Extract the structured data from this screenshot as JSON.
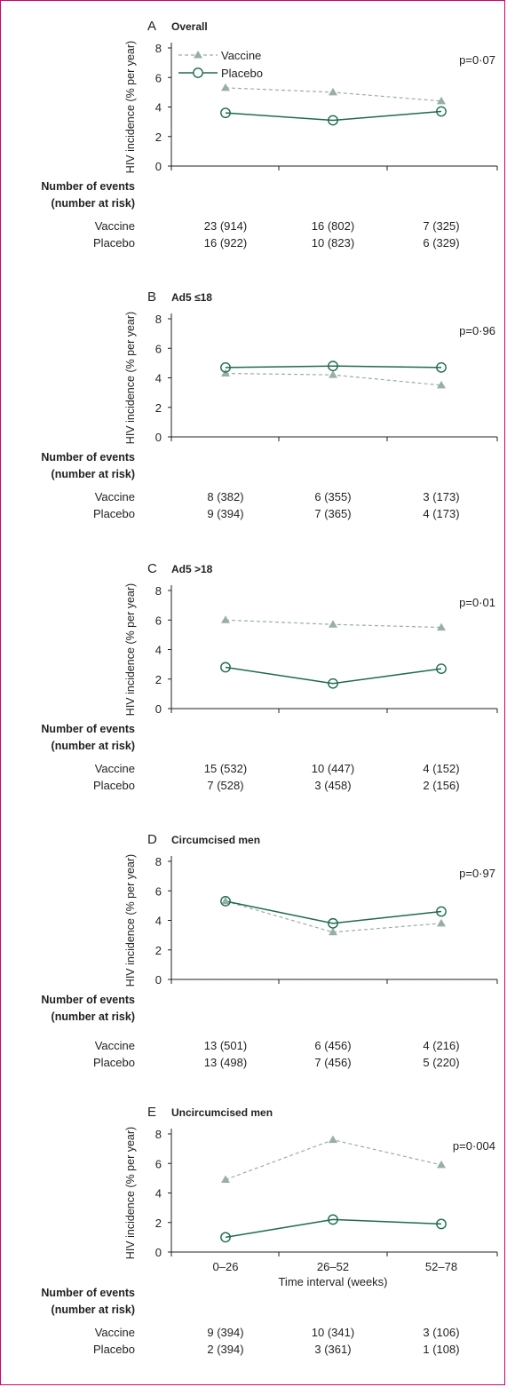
{
  "colors": {
    "vaccine": "#97b0a3",
    "placebo": "#1d6b4f",
    "frame": "#d1006e",
    "text": "#231f20"
  },
  "legend": {
    "vaccine": "Vaccine",
    "placebo": "Placebo"
  },
  "ylabel": "HIV incidence (% per year)",
  "events_header": [
    "Number of events",
    "(number at risk)"
  ],
  "xlabel": "Time interval (weeks)",
  "chart_data": [
    {
      "type": "line",
      "letter": "A",
      "title": "Overall",
      "p_value": "p=0·07",
      "categories": [
        "0–26",
        "26–52",
        "52–78"
      ],
      "ylim": [
        0,
        8
      ],
      "yticks": [
        "0",
        "2",
        "4",
        "6",
        "8"
      ],
      "series": [
        {
          "name": "Vaccine",
          "values": [
            5.3,
            5.0,
            4.4
          ]
        },
        {
          "name": "Placebo",
          "values": [
            3.6,
            3.1,
            3.7
          ]
        }
      ],
      "table": [
        {
          "label": "Vaccine",
          "cells": [
            "23 (914)",
            "16 (802)",
            "7 (325)"
          ]
        },
        {
          "label": "Placebo",
          "cells": [
            "16 (922)",
            "10 (823)",
            "6 (329)"
          ]
        }
      ]
    },
    {
      "type": "line",
      "letter": "B",
      "title": "Ad5 ≤18",
      "p_value": "p=0·96",
      "categories": [
        "0–26",
        "26–52",
        "52–78"
      ],
      "ylim": [
        0,
        8
      ],
      "yticks": [
        "0",
        "2",
        "4",
        "6",
        "8"
      ],
      "series": [
        {
          "name": "Vaccine",
          "values": [
            4.3,
            4.2,
            3.5
          ]
        },
        {
          "name": "Placebo",
          "values": [
            4.7,
            4.8,
            4.7
          ]
        }
      ],
      "table": [
        {
          "label": "Vaccine",
          "cells": [
            "8 (382)",
            "6 (355)",
            "3 (173)"
          ]
        },
        {
          "label": "Placebo",
          "cells": [
            "9 (394)",
            "7 (365)",
            "4 (173)"
          ]
        }
      ]
    },
    {
      "type": "line",
      "letter": "C",
      "title": "Ad5 >18",
      "p_value": "p=0·01",
      "categories": [
        "0–26",
        "26–52",
        "52–78"
      ],
      "ylim": [
        0,
        8
      ],
      "yticks": [
        "0",
        "2",
        "4",
        "6",
        "8"
      ],
      "series": [
        {
          "name": "Vaccine",
          "values": [
            6.0,
            5.7,
            5.5
          ]
        },
        {
          "name": "Placebo",
          "values": [
            2.8,
            1.7,
            2.7
          ]
        }
      ],
      "table": [
        {
          "label": "Vaccine",
          "cells": [
            "15 (532)",
            "10 (447)",
            "4 (152)"
          ]
        },
        {
          "label": "Placebo",
          "cells": [
            "7 (528)",
            "3 (458)",
            "2 (156)"
          ]
        }
      ]
    },
    {
      "type": "line",
      "letter": "D",
      "title": "Circumcised men",
      "p_value": "p=0·97",
      "categories": [
        "0–26",
        "26–52",
        "52–78"
      ],
      "ylim": [
        0,
        8
      ],
      "yticks": [
        "0",
        "2",
        "4",
        "6",
        "8"
      ],
      "series": [
        {
          "name": "Vaccine",
          "values": [
            5.3,
            3.2,
            3.8
          ]
        },
        {
          "name": "Placebo",
          "values": [
            5.3,
            3.8,
            4.6
          ]
        }
      ],
      "table": [
        {
          "label": "Vaccine",
          "cells": [
            "13 (501)",
            "6 (456)",
            "4 (216)"
          ]
        },
        {
          "label": "Placebo",
          "cells": [
            "13 (498)",
            "7 (456)",
            "5 (220)"
          ]
        }
      ]
    },
    {
      "type": "line",
      "letter": "E",
      "title": "Uncircumcised men",
      "p_value": "p=0·004",
      "categories": [
        "0–26",
        "26–52",
        "52–78"
      ],
      "ylim": [
        0,
        8
      ],
      "yticks": [
        "0",
        "2",
        "4",
        "6",
        "8"
      ],
      "series": [
        {
          "name": "Vaccine",
          "values": [
            4.9,
            7.6,
            5.9
          ]
        },
        {
          "name": "Placebo",
          "values": [
            1.0,
            2.2,
            1.9
          ]
        }
      ],
      "table": [
        {
          "label": "Vaccine",
          "cells": [
            "9 (394)",
            "10 (341)",
            "3 (106)"
          ]
        },
        {
          "label": "Placebo",
          "cells": [
            "2 (394)",
            "3 (361)",
            "1 (108)"
          ]
        }
      ]
    }
  ]
}
